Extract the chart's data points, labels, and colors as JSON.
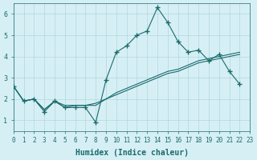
{
  "xlabel": "Humidex (Indice chaleur)",
  "xlim": [
    0,
    23
  ],
  "ylim": [
    0.5,
    6.5
  ],
  "yticks": [
    1,
    2,
    3,
    4,
    5,
    6
  ],
  "xticks": [
    0,
    1,
    2,
    3,
    4,
    5,
    6,
    7,
    8,
    9,
    10,
    11,
    12,
    13,
    14,
    15,
    16,
    17,
    18,
    19,
    20,
    21,
    22,
    23
  ],
  "bg_color": "#d6eff5",
  "line_color": "#1a6b6b",
  "grid_color": "#b0d8e0",
  "line1_x": [
    0,
    1,
    2,
    3,
    4,
    5,
    6,
    7,
    8,
    9,
    10,
    11,
    12,
    13,
    14,
    15,
    16,
    17,
    18,
    19,
    20,
    21,
    22
  ],
  "line1_y": [
    2.6,
    1.9,
    2.0,
    1.4,
    1.9,
    1.6,
    1.6,
    1.6,
    0.9,
    2.9,
    4.2,
    4.5,
    5.0,
    5.2,
    6.3,
    5.6,
    4.7,
    4.2,
    4.3,
    3.8,
    4.1,
    3.3,
    2.7
  ],
  "line2_x": [
    0,
    1,
    2,
    3,
    4,
    5,
    6,
    7,
    8,
    9,
    10,
    11,
    12,
    13,
    14,
    15,
    16,
    17,
    18,
    19,
    20,
    21,
    22
  ],
  "line2_y": [
    2.6,
    1.9,
    2.0,
    1.5,
    1.9,
    1.6,
    1.7,
    1.7,
    1.7,
    2.0,
    2.2,
    2.4,
    2.6,
    2.8,
    3.0,
    3.2,
    3.3,
    3.5,
    3.7,
    3.8,
    3.9,
    4.0,
    4.1
  ],
  "line3_x": [
    0,
    1,
    2,
    3,
    4,
    5,
    6,
    7,
    8,
    9,
    10,
    11,
    12,
    13,
    14,
    15,
    16,
    17,
    18,
    19,
    20,
    21,
    22
  ],
  "line3_y": [
    2.6,
    1.9,
    2.0,
    1.5,
    1.9,
    1.7,
    1.7,
    1.7,
    1.8,
    2.0,
    2.3,
    2.5,
    2.7,
    2.9,
    3.1,
    3.3,
    3.4,
    3.6,
    3.8,
    3.9,
    4.0,
    4.1,
    4.2
  ]
}
